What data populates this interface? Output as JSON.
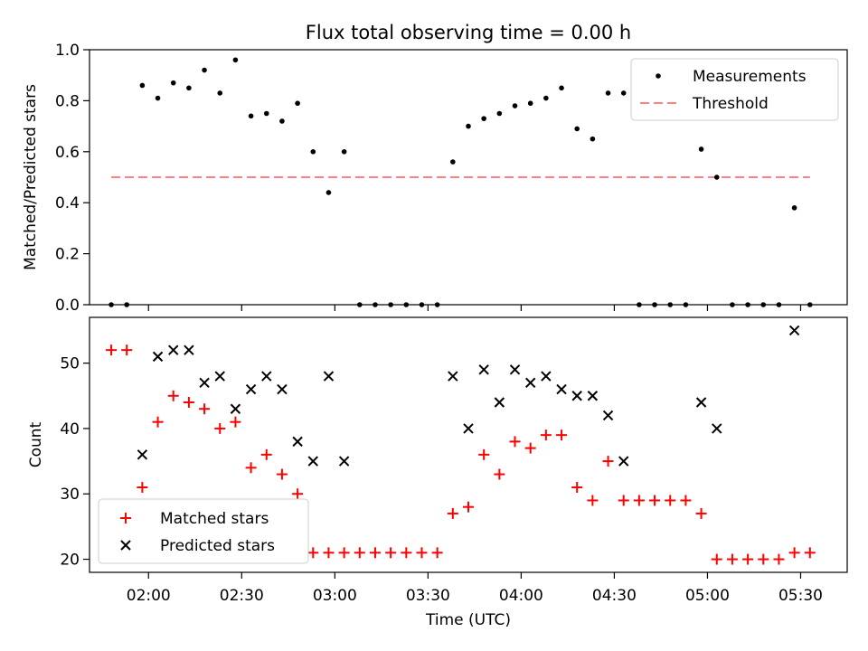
{
  "chart_data": [
    {
      "type": "scatter",
      "title": "Flux total observing time = 0.00 h",
      "ylabel": "Matched/Predicted stars",
      "ylim": [
        0,
        1
      ],
      "yticks": [
        "0.0",
        "0.2",
        "0.4",
        "0.6",
        "0.8",
        "1.0"
      ],
      "series": [
        {
          "name": "Measurements",
          "color": "#000000",
          "marker": "dot",
          "x": [
            "01:48",
            "01:53",
            "01:58",
            "02:03",
            "02:08",
            "02:13",
            "02:18",
            "02:23",
            "02:28",
            "02:33",
            "02:38",
            "02:43",
            "02:48",
            "02:53",
            "02:58",
            "03:03",
            "03:08",
            "03:13",
            "03:18",
            "03:23",
            "03:28",
            "03:33",
            "03:38",
            "03:43",
            "03:48",
            "03:53",
            "03:58",
            "04:03",
            "04:08",
            "04:13",
            "04:18",
            "04:23",
            "04:28",
            "04:33",
            "04:38",
            "04:43",
            "04:48",
            "04:53",
            "04:58",
            "05:03",
            "05:08",
            "05:13",
            "05:18",
            "05:23",
            "05:28",
            "05:33"
          ],
          "y": [
            0.0,
            0.0,
            0.86,
            0.81,
            0.87,
            0.85,
            0.92,
            0.83,
            0.96,
            0.74,
            0.75,
            0.72,
            0.79,
            0.6,
            0.44,
            0.6,
            0.0,
            0.0,
            0.0,
            0.0,
            0.0,
            0.0,
            0.56,
            0.7,
            0.73,
            0.75,
            0.78,
            0.79,
            0.81,
            0.85,
            0.69,
            0.65,
            0.83,
            0.83,
            0.0,
            0.0,
            0.0,
            0.0,
            0.61,
            0.5,
            0.0,
            0.0,
            0.0,
            0.0,
            0.38,
            0.0
          ]
        },
        {
          "name": "Threshold",
          "color": "#ff8080",
          "style": "dashed",
          "x": [
            "01:48",
            "05:33"
          ],
          "y": [
            0.5,
            0.5
          ]
        }
      ],
      "legend": "upper-right"
    },
    {
      "type": "scatter",
      "xlabel": "Time (UTC)",
      "ylabel": "Count",
      "ylim": [
        18,
        57
      ],
      "yticks": [
        "20",
        "30",
        "40",
        "50"
      ],
      "xlim": [
        "01:41",
        "05:45"
      ],
      "xticks": [
        "02:00",
        "02:30",
        "03:00",
        "03:30",
        "04:00",
        "04:30",
        "05:00",
        "05:30"
      ],
      "series": [
        {
          "name": "Matched stars",
          "color": "#ff0000",
          "marker": "plus",
          "x": [
            "01:48",
            "01:53",
            "01:58",
            "02:03",
            "02:08",
            "02:13",
            "02:18",
            "02:23",
            "02:28",
            "02:33",
            "02:38",
            "02:43",
            "02:48",
            "02:53",
            "02:58",
            "03:03",
            "03:08",
            "03:13",
            "03:18",
            "03:23",
            "03:28",
            "03:33",
            "03:38",
            "03:43",
            "03:48",
            "03:53",
            "03:58",
            "04:03",
            "04:08",
            "04:13",
            "04:18",
            "04:23",
            "04:28",
            "04:33",
            "04:38",
            "04:43",
            "04:48",
            "04:53",
            "04:58",
            "05:03",
            "05:08",
            "05:13",
            "05:18",
            "05:23",
            "05:28",
            "05:33"
          ],
          "y": [
            52,
            52,
            31,
            41,
            45,
            44,
            43,
            40,
            41,
            34,
            36,
            33,
            30,
            21,
            21,
            21,
            21,
            21,
            21,
            21,
            21,
            21,
            27,
            28,
            36,
            33,
            38,
            37,
            39,
            39,
            31,
            29,
            35,
            29,
            29,
            29,
            29,
            29,
            27,
            20,
            20,
            20,
            20,
            20,
            21,
            21
          ]
        },
        {
          "name": "Predicted stars",
          "color": "#000000",
          "marker": "x",
          "x": [
            "01:58",
            "02:03",
            "02:08",
            "02:13",
            "02:18",
            "02:23",
            "02:28",
            "02:33",
            "02:38",
            "02:43",
            "02:48",
            "02:53",
            "02:58",
            "03:03",
            "03:38",
            "03:43",
            "03:48",
            "03:53",
            "03:58",
            "04:03",
            "04:08",
            "04:13",
            "04:18",
            "04:23",
            "04:28",
            "04:33",
            "04:58",
            "05:03",
            "05:28"
          ],
          "y": [
            36,
            51,
            52,
            52,
            47,
            48,
            43,
            46,
            48,
            46,
            38,
            35,
            48,
            35,
            48,
            40,
            49,
            44,
            49,
            47,
            48,
            46,
            45,
            45,
            42,
            35,
            44,
            40,
            55
          ]
        }
      ],
      "legend": "lower-left"
    }
  ]
}
